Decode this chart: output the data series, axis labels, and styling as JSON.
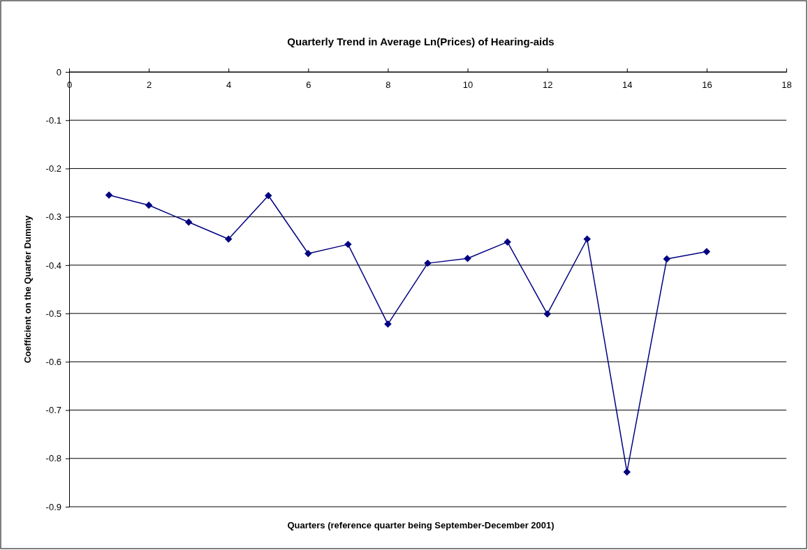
{
  "chart_data": {
    "type": "line",
    "title": "Quarterly Trend in Average Ln(Prices) of Hearing-aids",
    "xlabel": "Quarters (reference quarter being September-December 2001)",
    "ylabel": "Coefficient on the Quarter Dummy",
    "x": [
      1,
      2,
      3,
      4,
      5,
      6,
      7,
      8,
      9,
      10,
      11,
      12,
      13,
      14,
      15,
      16
    ],
    "series": [
      {
        "color": "#000080",
        "values": [
          -0.255,
          -0.276,
          -0.311,
          -0.346,
          -0.256,
          -0.376,
          -0.357,
          -0.522,
          -0.396,
          -0.386,
          -0.352,
          -0.501,
          -0.346,
          -0.828,
          -0.387,
          -0.372
        ]
      }
    ],
    "xlim": [
      0,
      18
    ],
    "xticks": [
      0,
      2,
      4,
      6,
      8,
      10,
      12,
      14,
      16,
      18
    ],
    "ylim": [
      -0.9,
      0
    ],
    "yticks": [
      -0.9,
      -0.8,
      -0.7,
      -0.6,
      -0.5,
      -0.4,
      -0.3,
      -0.2,
      -0.1,
      0
    ],
    "grid": "y",
    "marker": "diamond",
    "line_style": "solid"
  }
}
